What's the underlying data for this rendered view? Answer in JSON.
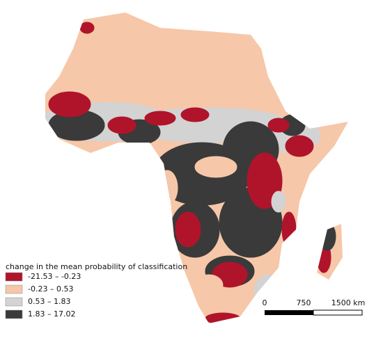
{
  "map": {
    "legend": {
      "title": "change in the mean probability of classification",
      "classes": [
        {
          "label": "-21.53 – -0.23",
          "color": "#b0142a"
        },
        {
          "label": "-0.23 – 0.53",
          "color": "#f6c7a8"
        },
        {
          "label": "0.53 – 1.83",
          "color": "#d3d3d3"
        },
        {
          "label": "1.83 – 17.02",
          "color": "#3a3a3a"
        }
      ]
    },
    "scale_bar": {
      "labels": [
        "0",
        "750",
        "1500 km"
      ]
    }
  }
}
